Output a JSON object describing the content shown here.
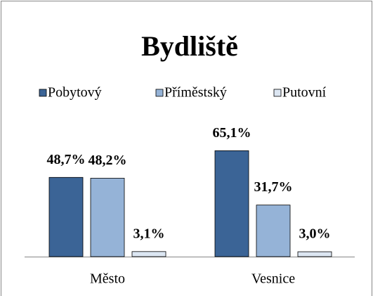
{
  "chart_data": {
    "type": "bar",
    "title": "Bydliště",
    "categories": [
      "Město",
      "Vesnice"
    ],
    "series": [
      {
        "name": "Pobytový",
        "color": "#3b6496",
        "values": [
          48.7,
          65.1
        ],
        "value_labels": [
          "48,7%",
          "65,1%"
        ]
      },
      {
        "name": "Příměstský",
        "color": "#95b3d7",
        "values": [
          48.2,
          31.7
        ],
        "value_labels": [
          "48,2%",
          "31,7%"
        ]
      },
      {
        "name": "Putovní",
        "color": "#dce6f2",
        "values": [
          3.1,
          3.0
        ],
        "value_labels": [
          "3,1%",
          "3,0%"
        ]
      }
    ],
    "ylim": [
      0,
      70
    ]
  }
}
